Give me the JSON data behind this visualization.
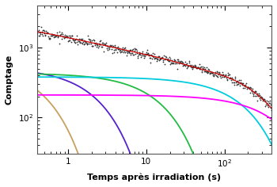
{
  "title": "",
  "xlabel": "Temps après irradiation (s)",
  "ylabel": "Comptage",
  "xlim": [
    0.4,
    400
  ],
  "ylim": [
    30,
    4000
  ],
  "background_color": "#ffffff",
  "components": [
    {
      "color": "#c8a060",
      "A": 600,
      "tau": 0.45
    },
    {
      "color": "#5522cc",
      "A": 520,
      "tau": 2.2
    },
    {
      "color": "#22bb44",
      "A": 430,
      "tau": 15
    },
    {
      "color": "#00ccdd",
      "A": 380,
      "tau": 180
    },
    {
      "color": "#ff00ff",
      "A": 210,
      "tau": 500
    }
  ],
  "data_color": "#333333",
  "fit_color": "#cc0000",
  "noise_amplitude": 0.07,
  "n_data_points": 500
}
